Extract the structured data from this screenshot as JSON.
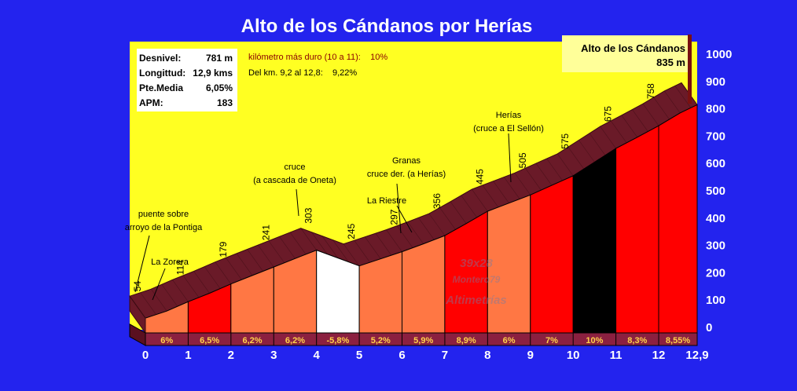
{
  "title": "Alto de los Cándanos por Herías",
  "stats": {
    "labels": [
      "Desnivel:",
      "Longittud:",
      "Pte.Media",
      "APM:"
    ],
    "values": [
      "781 m",
      "12,9 kms",
      "6,05%",
      "183"
    ]
  },
  "notes": {
    "hardest_km": "kilómetro más duro (10 a 11):    10%",
    "segment": "Del km. 9,2 al 12,8:    9,22%"
  },
  "summit": {
    "name": "Alto de los Cándanos",
    "altitude": "835 m"
  },
  "watermark": {
    "line1": "39x28",
    "line2": "Montero79",
    "line3": "Altimetrías"
  },
  "colors": {
    "background": "#2323ee",
    "plot": "#ffff22",
    "profile_top": "#6a1a28",
    "profile_band": "#8b2040",
    "gradient_red": "#ff0000",
    "gradient_orange": "#ff7744",
    "descent": "#ffffff",
    "hardest": "#000000",
    "summit_pole": "#7a1010"
  },
  "chart_data": {
    "type": "area",
    "x": [
      0,
      0.5,
      1,
      1.5,
      2,
      2.5,
      3,
      3.5,
      4,
      4.5,
      5,
      5.5,
      6,
      6.5,
      7,
      7.5,
      8,
      8.5,
      9,
      9.5,
      10,
      10.5,
      11,
      11.5,
      12,
      12.5,
      12.9
    ],
    "y": [
      54,
      80,
      114,
      145,
      179,
      210,
      241,
      272,
      303,
      274,
      245,
      271,
      297,
      326,
      356,
      400,
      445,
      475,
      505,
      540,
      575,
      625,
      675,
      716,
      758,
      805,
      835
    ],
    "xlim": [
      0,
      12.9
    ],
    "ylim": [
      0,
      1000
    ],
    "y_ticks": [
      0,
      100,
      200,
      300,
      400,
      500,
      600,
      700,
      800,
      900,
      1000
    ],
    "x_ticks": [
      "0",
      "1",
      "2",
      "3",
      "4",
      "5",
      "6",
      "7",
      "8",
      "9",
      "10",
      "11",
      "12",
      "12,9"
    ],
    "km_gradients": [
      "6%",
      "6,5%",
      "6,2%",
      "6,2%",
      "-5,8%",
      "5,2%",
      "5,9%",
      "8,9%",
      "6%",
      "7%",
      "10%",
      "8,3%",
      "8,55%"
    ],
    "km_altitude_labels": [
      {
        "km": 0,
        "label": "54"
      },
      {
        "km": 1,
        "label": "114"
      },
      {
        "km": 2,
        "label": "179"
      },
      {
        "km": 3,
        "label": "241"
      },
      {
        "km": 4,
        "label": "303"
      },
      {
        "km": 5,
        "label": "245"
      },
      {
        "km": 6,
        "label": "297"
      },
      {
        "km": 7,
        "label": "356"
      },
      {
        "km": 8,
        "label": "445"
      },
      {
        "km": 9,
        "label": "505"
      },
      {
        "km": 10,
        "label": "575"
      },
      {
        "km": 11,
        "label": "675"
      },
      {
        "km": 12,
        "label": "758"
      }
    ],
    "places": [
      {
        "km": 0,
        "lines": [
          "puente sobre",
          "arroyo de la Pontiga"
        ]
      },
      {
        "km": 0.6,
        "lines": [
          "La Zorera"
        ]
      },
      {
        "km": 4,
        "lines": [
          "cruce",
          "(a cascada de Oneta)"
        ]
      },
      {
        "km": 5.8,
        "lines": [
          "La Riestre"
        ]
      },
      {
        "km": 6.5,
        "lines": [
          "Granas",
          "cruce der. (a Herías)"
        ]
      },
      {
        "km": 9.2,
        "lines": [
          "Herías",
          "(cruce a  El Sellón)"
        ]
      }
    ]
  }
}
